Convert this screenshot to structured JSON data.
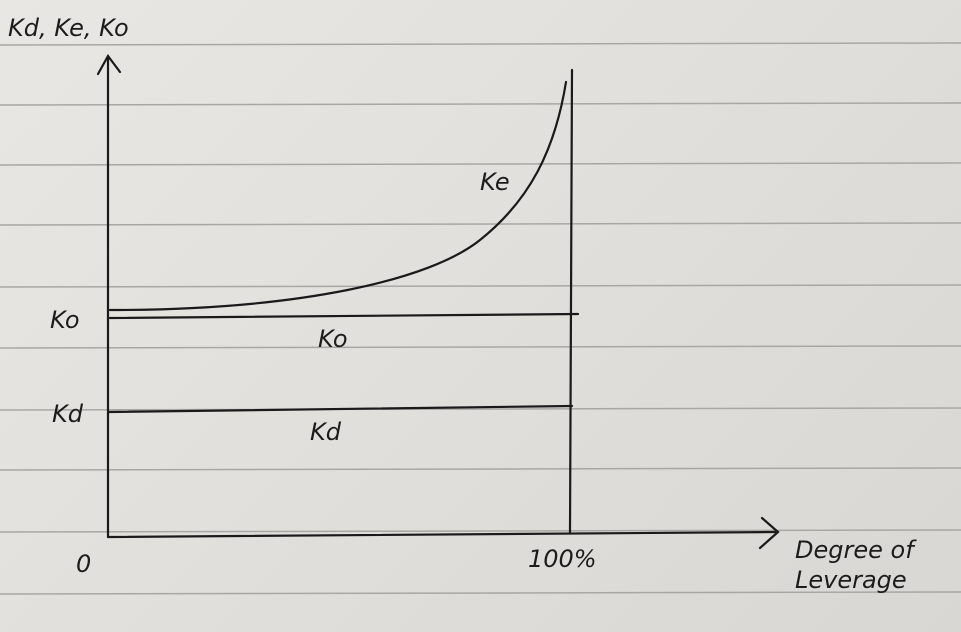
{
  "axes": {
    "y_label": "Kd, Ke, Ko",
    "x_label": "Degree of Leverage",
    "origin": "0",
    "x_end": "100%"
  },
  "axis_labels": {
    "ko": "Ko",
    "kd": "Kd"
  },
  "curves": [
    {
      "label": "Ke"
    },
    {
      "label": "Ko"
    },
    {
      "label": "Kd"
    }
  ]
}
